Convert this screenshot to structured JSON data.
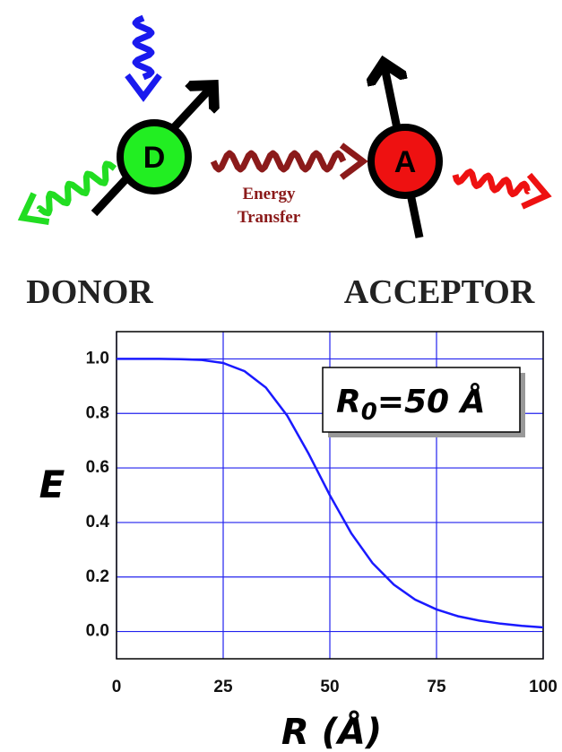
{
  "diagram": {
    "donor_symbol": "D",
    "acceptor_symbol": "A",
    "transfer_label": [
      "Energy",
      "Transfer"
    ],
    "donor_label": "DONOR",
    "acceptor_label": "ACCEPTOR"
  },
  "chart_data": {
    "type": "line",
    "x": [
      0,
      5,
      10,
      15,
      20,
      25,
      30,
      35,
      40,
      45,
      50,
      55,
      60,
      65,
      70,
      75,
      80,
      85,
      90,
      95,
      100
    ],
    "values": [
      1.0,
      1.0,
      1.0,
      0.999,
      0.996,
      0.985,
      0.955,
      0.895,
      0.792,
      0.653,
      0.5,
      0.361,
      0.251,
      0.172,
      0.117,
      0.081,
      0.056,
      0.04,
      0.029,
      0.021,
      0.015
    ],
    "color": "#1a1aff",
    "xlim": [
      0,
      100
    ],
    "ylim": [
      -0.1,
      1.1
    ],
    "xticks": [
      0,
      25,
      50,
      75,
      100
    ],
    "yticks": [
      {
        "value": 0,
        "label": "0.0"
      },
      0.2,
      0.4,
      0.6,
      0.8,
      {
        "value": 1,
        "label": "1.0"
      }
    ],
    "xlabel": "R (Å)",
    "ylabel": "E",
    "grid": true,
    "grid_color": "#2222ee",
    "annotation": {
      "main": "R",
      "subscript": "0",
      "rest": "=50 Å"
    }
  }
}
